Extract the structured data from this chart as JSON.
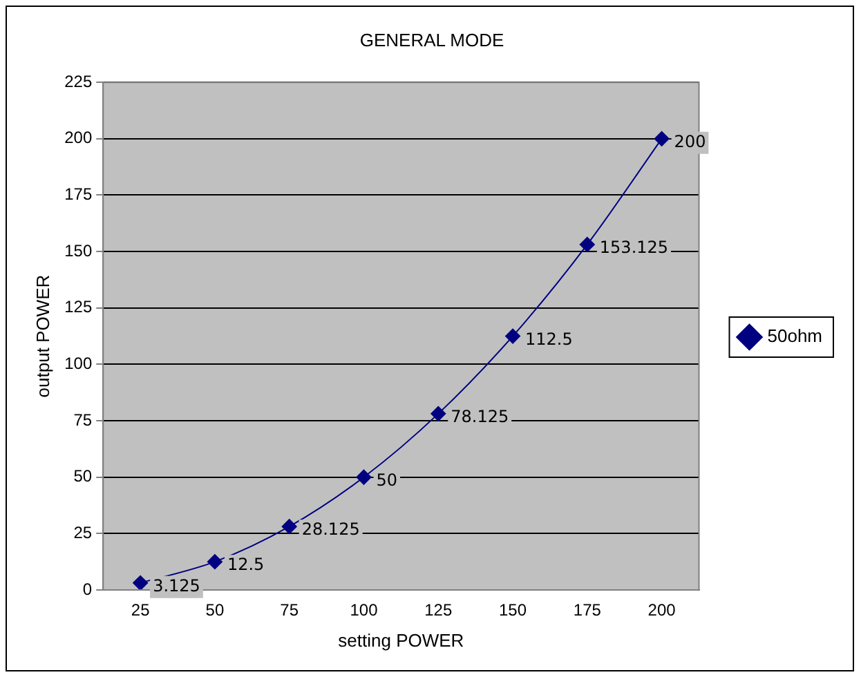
{
  "chart_data": {
    "type": "line",
    "title": "GENERAL MODE",
    "xlabel": "setting POWER",
    "ylabel": "output POWER",
    "categories": [
      "25",
      "50",
      "75",
      "100",
      "125",
      "150",
      "175",
      "200"
    ],
    "series": [
      {
        "name": "50ohm",
        "color": "#000080",
        "values": [
          3.125,
          12.5,
          28.125,
          50,
          78.125,
          112.5,
          153.125,
          200
        ]
      }
    ],
    "ylim": [
      0,
      225
    ],
    "yticks": [
      0,
      25,
      50,
      75,
      100,
      125,
      150,
      175,
      200,
      225
    ],
    "grid": "y",
    "legend": "right",
    "marker": "diamond",
    "line_style": "solid",
    "data_labels": true
  }
}
